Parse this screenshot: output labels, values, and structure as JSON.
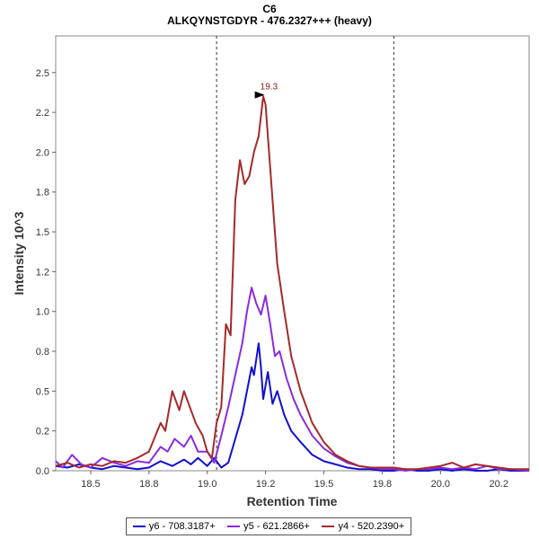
{
  "chart_data": {
    "type": "line",
    "title": "C6",
    "subtitle": "ALKQYNSTGDYR - 476.2327+++ (heavy)",
    "xlabel": "Retention Time",
    "ylabel": "Intensity 10^3",
    "xlim": [
      18.35,
      20.38
    ],
    "ylim": [
      0,
      2.73
    ],
    "xticks": [
      18.5,
      18.75,
      19.0,
      19.25,
      19.5,
      19.75,
      20.0,
      20.25
    ],
    "xtick_labels": [
      "18.5",
      "18.8",
      "19.0",
      "19.2",
      "19.5",
      "19.8",
      "20.0",
      "20.2"
    ],
    "yticks": [
      0.0,
      0.25,
      0.5,
      0.75,
      1.0,
      1.25,
      1.5,
      1.75,
      2.0,
      2.25,
      2.5
    ],
    "ytick_labels": [
      "0.0",
      "0.2",
      "0.5",
      "0.8",
      "1.0",
      "1.2",
      "1.5",
      "1.8",
      "2.0",
      "2.2",
      "2.5"
    ],
    "vlines": [
      19.04,
      19.8
    ],
    "peak_label": {
      "text": "19.3",
      "x": 19.25,
      "y": 2.36
    },
    "legend_position": "bottom",
    "grid": false,
    "series": [
      {
        "name": "y6 - 708.3187+",
        "color": "#1010d0",
        "x": [
          18.35,
          18.4,
          18.45,
          18.5,
          18.55,
          18.6,
          18.65,
          18.7,
          18.75,
          18.8,
          18.85,
          18.9,
          18.93,
          18.96,
          19.0,
          19.03,
          19.06,
          19.09,
          19.12,
          19.15,
          19.17,
          19.19,
          19.2,
          19.21,
          19.22,
          19.23,
          19.24,
          19.26,
          19.28,
          19.3,
          19.33,
          19.36,
          19.4,
          19.45,
          19.5,
          19.55,
          19.6,
          19.65,
          19.7,
          19.75,
          19.8,
          19.85,
          19.9,
          19.95,
          20.0,
          20.05,
          20.1,
          20.15,
          20.2,
          20.25,
          20.3,
          20.38
        ],
        "y": [
          0.03,
          0.02,
          0.04,
          0.02,
          0.01,
          0.03,
          0.02,
          0.01,
          0.02,
          0.06,
          0.03,
          0.07,
          0.04,
          0.08,
          0.03,
          0.08,
          0.02,
          0.05,
          0.2,
          0.35,
          0.5,
          0.65,
          0.6,
          0.7,
          0.8,
          0.65,
          0.45,
          0.62,
          0.42,
          0.5,
          0.35,
          0.25,
          0.18,
          0.1,
          0.06,
          0.04,
          0.02,
          0.01,
          0.01,
          0.0,
          0.0,
          0.01,
          0.0,
          0.0,
          0.01,
          0.0,
          0.01,
          0.0,
          0.0,
          0.01,
          0.0,
          0.0
        ]
      },
      {
        "name": "y5 - 621.2866+",
        "color": "#8a2be2",
        "x": [
          18.35,
          18.38,
          18.42,
          18.46,
          18.5,
          18.55,
          18.6,
          18.65,
          18.7,
          18.75,
          18.8,
          18.83,
          18.86,
          18.9,
          18.93,
          18.96,
          19.0,
          19.03,
          19.06,
          19.09,
          19.12,
          19.15,
          19.17,
          19.19,
          19.21,
          19.23,
          19.25,
          19.27,
          19.29,
          19.31,
          19.34,
          19.37,
          19.4,
          19.45,
          19.5,
          19.55,
          19.6,
          19.65,
          19.7,
          19.75,
          19.8,
          19.85,
          19.9,
          19.95,
          20.0,
          20.05,
          20.1,
          20.15,
          20.2,
          20.25,
          20.3,
          20.38
        ],
        "y": [
          0.06,
          0.02,
          0.1,
          0.04,
          0.02,
          0.08,
          0.05,
          0.03,
          0.06,
          0.05,
          0.15,
          0.12,
          0.2,
          0.15,
          0.22,
          0.12,
          0.12,
          0.05,
          0.22,
          0.4,
          0.6,
          0.8,
          1.0,
          1.15,
          1.05,
          0.98,
          1.1,
          0.92,
          0.72,
          0.75,
          0.58,
          0.45,
          0.35,
          0.22,
          0.14,
          0.09,
          0.05,
          0.03,
          0.02,
          0.01,
          0.01,
          0.0,
          0.01,
          0.01,
          0.02,
          0.01,
          0.02,
          0.01,
          0.03,
          0.01,
          0.01,
          0.0
        ]
      },
      {
        "name": "y4 - 520.2390+",
        "color": "#a52a2a",
        "x": [
          18.35,
          18.4,
          18.45,
          18.5,
          18.55,
          18.6,
          18.65,
          18.7,
          18.75,
          18.8,
          18.82,
          18.85,
          18.88,
          18.9,
          18.92,
          18.95,
          18.98,
          19.0,
          19.02,
          19.04,
          19.06,
          19.08,
          19.1,
          19.12,
          19.14,
          19.16,
          19.18,
          19.2,
          19.22,
          19.24,
          19.25,
          19.27,
          19.3,
          19.33,
          19.36,
          19.4,
          19.45,
          19.5,
          19.55,
          19.6,
          19.65,
          19.7,
          19.75,
          19.8,
          19.85,
          19.9,
          19.95,
          20.0,
          20.05,
          20.1,
          20.15,
          20.2,
          20.25,
          20.3,
          20.38
        ],
        "y": [
          0.03,
          0.05,
          0.02,
          0.04,
          0.03,
          0.06,
          0.05,
          0.08,
          0.12,
          0.3,
          0.25,
          0.5,
          0.38,
          0.5,
          0.42,
          0.3,
          0.22,
          0.12,
          0.08,
          0.3,
          0.4,
          0.92,
          0.85,
          1.7,
          1.95,
          1.8,
          1.85,
          2.0,
          2.1,
          2.35,
          2.3,
          1.9,
          1.3,
          1.0,
          0.72,
          0.5,
          0.3,
          0.18,
          0.1,
          0.06,
          0.03,
          0.02,
          0.02,
          0.02,
          0.01,
          0.01,
          0.02,
          0.03,
          0.05,
          0.02,
          0.04,
          0.03,
          0.02,
          0.01,
          0.01
        ]
      }
    ]
  }
}
